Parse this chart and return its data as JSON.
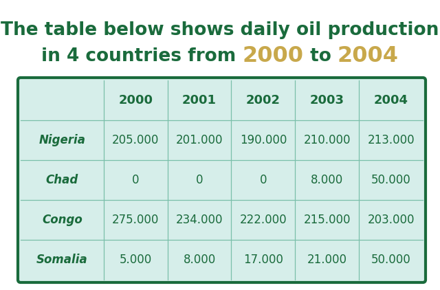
{
  "title_line1": "The table below shows daily oil production",
  "title_line2_pre": "in 4 countries from ",
  "title_line2_year1": "2000",
  "title_line2_mid": " to ",
  "title_line2_year2": "2004",
  "title_color": "#1a6b3c",
  "title_year_color": "#c8a84b",
  "title_fontsize": 19,
  "title_year_fontsize": 23,
  "columns": [
    "",
    "2000",
    "2001",
    "2002",
    "2003",
    "2004"
  ],
  "rows": [
    [
      "Nigeria",
      "205.000",
      "201.000",
      "190.000",
      "210.000",
      "213.000"
    ],
    [
      "Chad",
      "0",
      "0",
      "0",
      "8.000",
      "50.000"
    ],
    [
      "Congo",
      "275.000",
      "234.000",
      "222.000",
      "215.000",
      "203.000"
    ],
    [
      "Somalia",
      "5.000",
      "8.000",
      "17.000",
      "21.000",
      "50.000"
    ]
  ],
  "table_bg": "#d6eeea",
  "border_color": "#1a6b3c",
  "cell_border_color": "#7abfaa",
  "header_text_color": "#1a6b3c",
  "cell_text_color": "#1a6b3c",
  "row_label_color": "#1a6b3c",
  "background_color": "#ffffff",
  "col_widths_rel": [
    1.3,
    1.0,
    1.0,
    1.0,
    1.0,
    1.0
  ],
  "header_fontsize": 13,
  "cell_fontsize": 12,
  "row_label_fontsize": 12
}
